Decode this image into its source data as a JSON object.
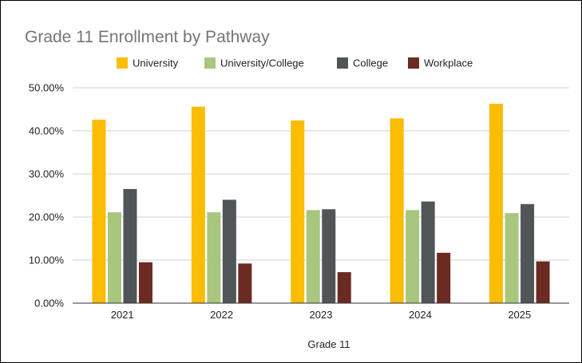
{
  "chart_data": {
    "type": "bar",
    "title": "Grade 11 Enrollment by Pathway",
    "xlabel": "Grade 11",
    "ylabel": "",
    "categories": [
      "2021",
      "2022",
      "2023",
      "2024",
      "2025"
    ],
    "series": [
      {
        "name": "University",
        "color": "#fbbc04",
        "values": [
          42.6,
          45.6,
          42.4,
          42.9,
          46.3
        ]
      },
      {
        "name": "University/College",
        "color": "#a8c67e",
        "values": [
          21.1,
          21.1,
          21.6,
          21.6,
          20.9
        ]
      },
      {
        "name": "College",
        "color": "#505558",
        "values": [
          26.5,
          24.0,
          21.8,
          23.6,
          23.0
        ]
      },
      {
        "name": "Workplace",
        "color": "#6b2b22",
        "values": [
          9.5,
          9.2,
          7.2,
          11.7,
          9.7
        ]
      }
    ],
    "ylim": [
      0,
      50
    ],
    "yticks": [
      "0.00%",
      "10.00%",
      "20.00%",
      "30.00%",
      "40.00%",
      "50.00%"
    ],
    "grid": true,
    "legend_position": "top"
  }
}
